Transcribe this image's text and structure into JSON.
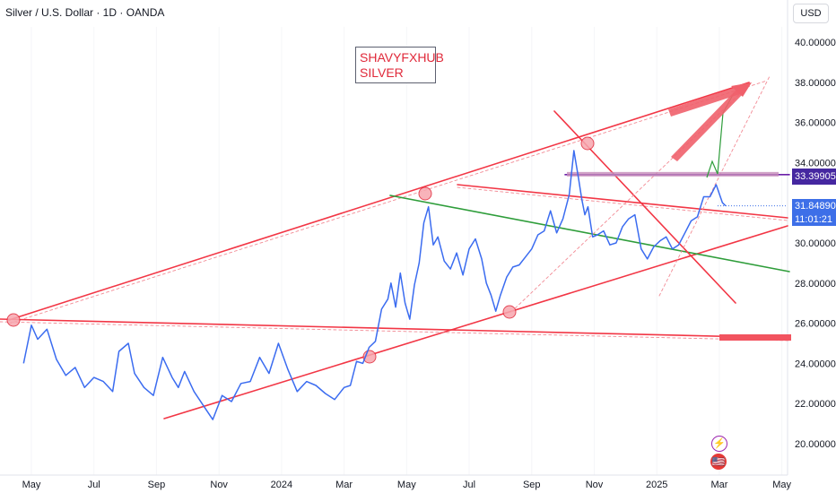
{
  "header": {
    "symbol": "Silver / U.S. Dollar · 1D · OANDA",
    "currency_button": "USD"
  },
  "annotation": {
    "line1": "SHAVYFXHUB",
    "line2": "SILVER"
  },
  "price_labels": {
    "level": "33.39905",
    "current_price": "31.84890",
    "countdown": "11:01:21"
  },
  "colors": {
    "price_line": "#3b6cf0",
    "trendline": "#f23645",
    "channel_line": "#2e9d3a",
    "horizontal_level": "#6a1fa8",
    "level_label_bg": "#4527a0",
    "price_label_bg": "#3d6fe8",
    "touch_marker": "#f7a6ae"
  },
  "events": {
    "bolt_icon": "⚡",
    "flag_icon": "🇺🇸"
  },
  "chart_data": {
    "type": "line",
    "title": "Silver / U.S. Dollar · 1D · OANDA",
    "xlabel": "",
    "ylabel": "",
    "ylim": [
      19.0,
      41.0
    ],
    "grid": false,
    "ytick_labels": [
      "20.00000",
      "22.00000",
      "24.00000",
      "26.00000",
      "28.00000",
      "30.00000",
      "32.00000",
      "34.00000",
      "36.00000",
      "38.00000",
      "40.00000"
    ],
    "yticks": [
      20,
      22,
      24,
      26,
      28,
      30,
      32,
      34,
      36,
      38,
      40
    ],
    "xtick_labels": [
      "May",
      "Jul",
      "Sep",
      "Nov",
      "2024",
      "Mar",
      "May",
      "Jul",
      "Sep",
      "Nov",
      "2025",
      "Mar",
      "May"
    ],
    "xticks": [
      3,
      5,
      7,
      9,
      11,
      13,
      15,
      17,
      19,
      21,
      23,
      25,
      27
    ],
    "x_unit": "months since Jan 2023",
    "series": [
      {
        "x": [
          2.75,
          3.0,
          3.2,
          3.5,
          3.8,
          4.1,
          4.4,
          4.7,
          5.0,
          5.3,
          5.6,
          5.8,
          6.1,
          6.3,
          6.6,
          6.9,
          7.2,
          7.5,
          7.7,
          7.9,
          8.2,
          8.5,
          8.8,
          9.1,
          9.4,
          9.7,
          10.0,
          10.3,
          10.6,
          10.9,
          11.2,
          11.5,
          11.8,
          12.1,
          12.4,
          12.7,
          13.0,
          13.2,
          13.4,
          13.6,
          13.8,
          14.0,
          14.2,
          14.4,
          14.5,
          14.65,
          14.8,
          14.95,
          15.1,
          15.25,
          15.4,
          15.55,
          15.7,
          15.85,
          16.0,
          16.2,
          16.4,
          16.6,
          16.8,
          17.0,
          17.2,
          17.4,
          17.55,
          17.7,
          17.85,
          18.0,
          18.2,
          18.4,
          18.6,
          18.8,
          19.0,
          19.2,
          19.4,
          19.6,
          19.8,
          20.0,
          20.2,
          20.35,
          20.5,
          20.6,
          20.7,
          20.8,
          20.95,
          21.1,
          21.3,
          21.5,
          21.7,
          21.9,
          22.1,
          22.3,
          22.5,
          22.7,
          22.9,
          23.1,
          23.3,
          23.5,
          23.7,
          23.9,
          24.1,
          24.3,
          24.5,
          24.7,
          24.9,
          25.1,
          25.2
        ],
        "y": [
          24.0,
          25.9,
          25.2,
          25.7,
          24.2,
          23.4,
          23.8,
          22.8,
          23.3,
          23.1,
          22.6,
          24.6,
          25.0,
          23.5,
          22.8,
          22.4,
          24.3,
          23.3,
          22.8,
          23.6,
          22.6,
          21.9,
          21.2,
          22.4,
          22.1,
          23.0,
          23.1,
          24.3,
          23.5,
          25.0,
          23.7,
          22.6,
          23.1,
          22.9,
          22.5,
          22.2,
          22.8,
          22.9,
          24.1,
          24.0,
          24.8,
          25.1,
          26.7,
          27.2,
          28.0,
          26.8,
          28.5,
          27.0,
          26.2,
          27.9,
          29.0,
          31.0,
          31.8,
          29.9,
          30.3,
          29.1,
          28.7,
          29.5,
          28.4,
          29.7,
          30.2,
          29.2,
          28.0,
          27.4,
          26.6,
          27.4,
          28.3,
          28.8,
          28.9,
          29.3,
          29.7,
          30.4,
          30.6,
          31.6,
          30.5,
          31.2,
          32.4,
          34.6,
          33.2,
          32.2,
          31.4,
          31.8,
          30.3,
          30.4,
          30.6,
          29.9,
          30.0,
          30.8,
          31.2,
          31.4,
          29.7,
          29.2,
          29.8,
          30.1,
          30.3,
          29.7,
          29.9,
          30.5,
          31.1,
          31.3,
          32.3,
          32.3,
          32.9,
          32.0,
          31.85
        ]
      }
    ],
    "horizontal_levels": [
      {
        "name": "",
        "value": 33.39905
      },
      {
        "name": "",
        "value": 31.8489
      }
    ]
  }
}
